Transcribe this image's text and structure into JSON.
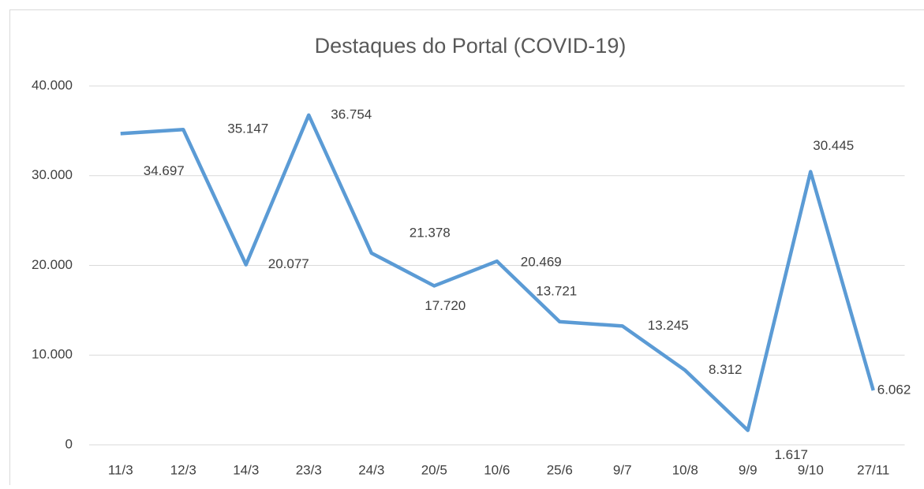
{
  "chart_data": {
    "type": "line",
    "title": "Destaques do Portal (COVID-19)",
    "categories": [
      "11/3",
      "12/3",
      "14/3",
      "23/3",
      "24/3",
      "20/5",
      "10/6",
      "25/6",
      "9/7",
      "10/8",
      "9/9",
      "9/10",
      "27/11"
    ],
    "series": [
      {
        "name": "Destaques",
        "color": "#5b9bd5",
        "values": [
          34697,
          35147,
          20077,
          36754,
          21378,
          17720,
          20469,
          13721,
          13245,
          8312,
          1617,
          30445,
          6062
        ],
        "value_labels": [
          "34.697",
          "35.147",
          "20.077",
          "36.754",
          "21.378",
          "17.720",
          "20.469",
          "13.721",
          "13.245",
          "8.312",
          "1.617",
          "30.445",
          "6.062"
        ]
      }
    ],
    "ylim": [
      0,
      40000
    ],
    "yticks": [
      0,
      {
        "value": 10000,
        "label": "10.000"
      },
      {
        "value": 20000,
        "label": "20.000"
      },
      {
        "value": 30000,
        "label": "30.000"
      },
      {
        "value": 40000,
        "label": "40.000"
      }
    ],
    "grid": true
  }
}
